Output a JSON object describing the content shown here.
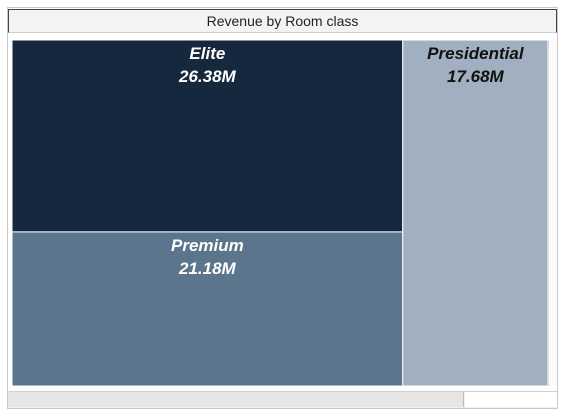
{
  "chart_data": {
    "type": "treemap",
    "title": "Revenue by Room class",
    "unit_suffix": "M",
    "tiles": [
      {
        "name": "Elite",
        "value": 26.38,
        "color": "#15283d"
      },
      {
        "name": "Premium",
        "value": 21.18,
        "color": "#5b758c"
      },
      {
        "name": "Presidential",
        "value": 17.68,
        "color": "#a0b0c0"
      }
    ],
    "label_color": "#ffffff",
    "dark_label_color": "#111111"
  }
}
